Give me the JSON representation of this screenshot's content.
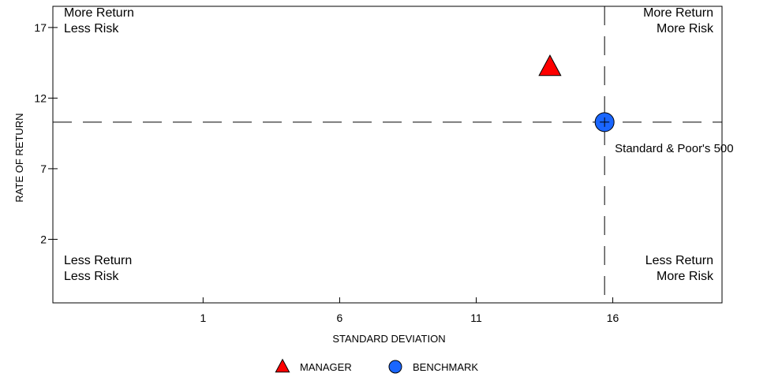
{
  "chart_data": {
    "type": "scatter",
    "xlabel": "STANDARD DEVIATION",
    "ylabel": "RATE OF RETURN",
    "xlim": [
      -4.5,
      20
    ],
    "ylim": [
      -2.5,
      18.5
    ],
    "xticks": [
      1,
      6,
      11,
      16
    ],
    "yticks": [
      2,
      7,
      12,
      17
    ],
    "grid": false,
    "legend_position": "bottom-center",
    "reference_lines": {
      "x": 15.7,
      "y": 10.3,
      "style": "dashed"
    },
    "quadrant_labels": {
      "top_left": [
        "More Return",
        "Less Risk"
      ],
      "top_right": [
        "More Return",
        "More Risk"
      ],
      "bottom_left": [
        "Less Return",
        "Less Risk"
      ],
      "bottom_right": [
        "Less Return",
        "More Risk"
      ]
    },
    "series": [
      {
        "name": "MANAGER",
        "marker": "triangle",
        "color": "#ff0000",
        "x": [
          13.7
        ],
        "y": [
          14.2
        ]
      },
      {
        "name": "BENCHMARK",
        "marker": "circle",
        "color": "#1a66ff",
        "x": [
          15.7
        ],
        "y": [
          10.3
        ],
        "point_label": "Standard & Poor's 500"
      }
    ]
  }
}
